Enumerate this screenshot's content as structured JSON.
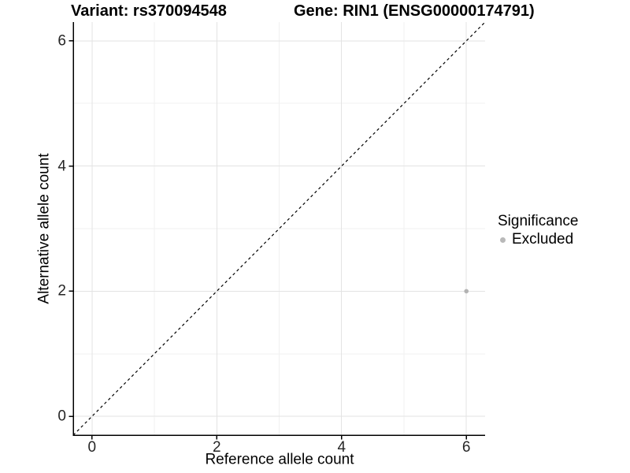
{
  "titles": {
    "variant": "Variant: rs370094548",
    "gene": "Gene: RIN1 (ENSG00000174791)"
  },
  "axes": {
    "x": {
      "label": "Reference allele count"
    },
    "y": {
      "label": "Alternative allele count"
    }
  },
  "legend": {
    "title": "Significance",
    "items": [
      {
        "label": "Excluded",
        "color": "#b9b9b9"
      }
    ]
  },
  "colors": {
    "background": "#ffffff",
    "axis_line": "#000000",
    "tick_mark": "#000000",
    "tick_label": "#262626",
    "grid_major": "#e3e3e3",
    "grid_minor": "#f1f1f1",
    "reference_line": "#000000",
    "point": "#b3b3b3"
  },
  "chart_data": {
    "type": "scatter",
    "title_left": "Variant: rs370094548",
    "title_right": "Gene: RIN1 (ENSG00000174791)",
    "xlabel": "Reference allele count",
    "ylabel": "Alternative allele count",
    "xlim": [
      -0.3,
      6.3
    ],
    "ylim": [
      -0.3,
      6.3
    ],
    "x_ticks": [
      0,
      2,
      4,
      6
    ],
    "y_ticks": [
      0,
      2,
      4,
      6
    ],
    "x_minor_ticks": [
      1,
      3,
      5
    ],
    "y_minor_ticks": [
      1,
      3,
      5
    ],
    "grid": "major+minor",
    "legend_position": "right",
    "legend_title": "Significance",
    "series": [
      {
        "name": "Excluded",
        "color": "#b3b3b3",
        "points": [
          {
            "x": 6,
            "y": 2
          }
        ]
      }
    ],
    "reference_line": {
      "slope": 1,
      "intercept": 0,
      "style": "dashed"
    }
  }
}
